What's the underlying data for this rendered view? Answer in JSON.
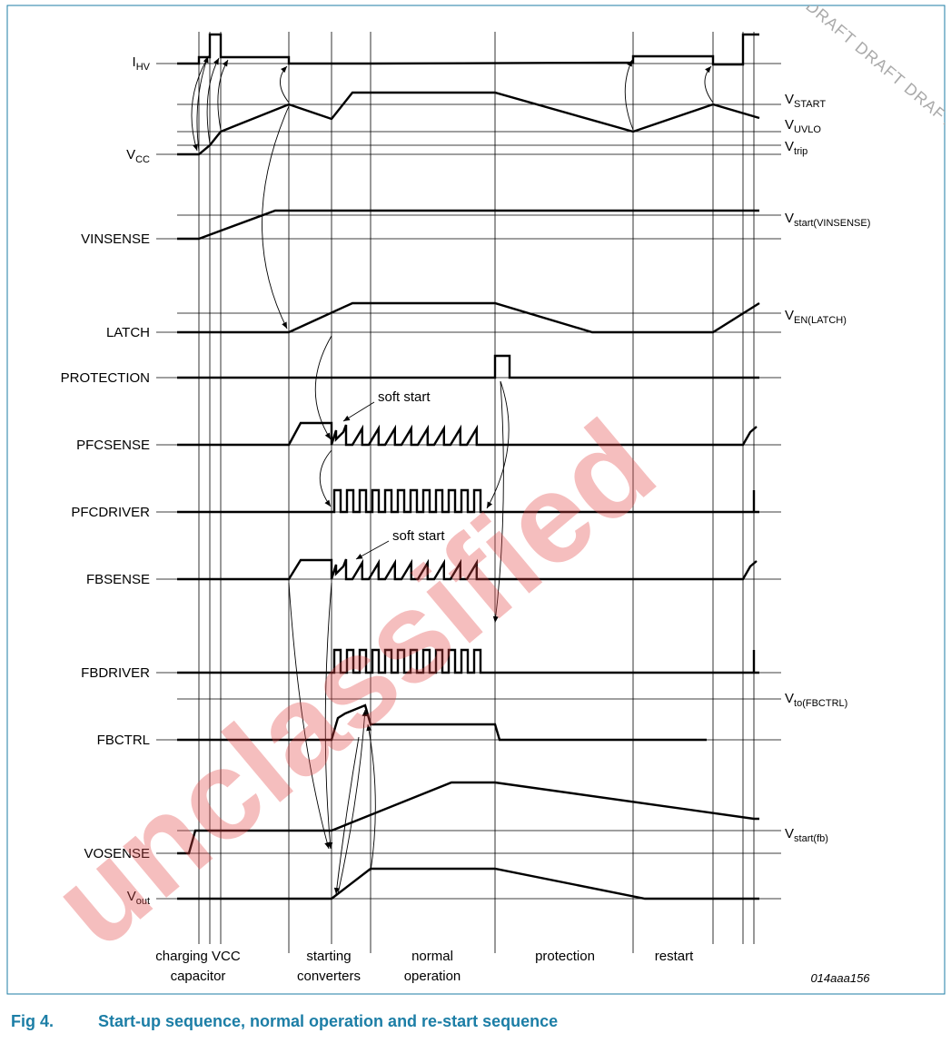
{
  "signals": [
    {
      "name": "I",
      "sub": "HV"
    },
    {
      "name": "V",
      "sub": "CC"
    },
    {
      "name": "VINSENSE"
    },
    {
      "name": "LATCH"
    },
    {
      "name": "PROTECTION"
    },
    {
      "name": "PFCSENSE"
    },
    {
      "name": "PFCDRIVER"
    },
    {
      "name": "FBSENSE"
    },
    {
      "name": "FBDRIVER"
    },
    {
      "name": "FBCTRL"
    },
    {
      "name": "VOSENSE"
    },
    {
      "name": "V",
      "sub": "out"
    }
  ],
  "thresholds": [
    {
      "name": "V",
      "sub": "START"
    },
    {
      "name": "V",
      "sub": "UVLO"
    },
    {
      "name": "V",
      "sub": "trip"
    },
    {
      "name": "V",
      "sub": "start(VINSENSE)"
    },
    {
      "name": "V",
      "sub": "EN(LATCH)"
    },
    {
      "name": "V",
      "sub": "to(FBCTRL)"
    },
    {
      "name": "V",
      "sub": "start(fb)"
    }
  ],
  "annotations": [
    "soft start",
    "soft start"
  ],
  "phases": [
    {
      "lines": [
        "charging VCC",
        "capacitor"
      ]
    },
    {
      "lines": [
        "starting",
        "converters"
      ]
    },
    {
      "lines": [
        "normal",
        "operation"
      ]
    },
    {
      "lines": [
        "protection"
      ]
    },
    {
      "lines": [
        "restart"
      ]
    }
  ],
  "figure_id": "014aaa156",
  "caption": {
    "number": "Fig 4.",
    "title": "Start-up sequence, normal operation and re-start sequence"
  },
  "watermarks": {
    "main": "unclassified",
    "draft": "DRAFT DRAFT DRAFT"
  }
}
